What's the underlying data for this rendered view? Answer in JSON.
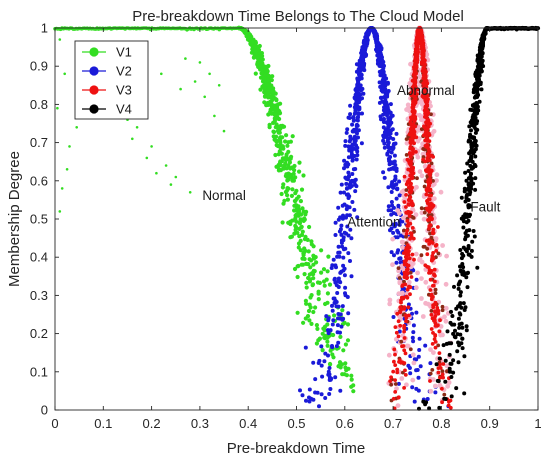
{
  "chart_data": {
    "type": "scatter",
    "title": "Pre-breakdown Time Belongs to The Cloud Model",
    "xlabel": "Pre-breakdown Time",
    "ylabel": "Membership Degree",
    "xlim": [
      0,
      1
    ],
    "ylim": [
      0,
      1
    ],
    "xticks": [
      "0",
      "0.1",
      "0.2",
      "0.3",
      "0.4",
      "0.5",
      "0.6",
      "0.7",
      "0.8",
      "0.9",
      "1"
    ],
    "yticks": [
      "0",
      "0.1",
      "0.2",
      "0.3",
      "0.4",
      "0.5",
      "0.6",
      "0.7",
      "0.8",
      "0.9",
      "1"
    ],
    "grid": false,
    "legend_position": "top-left",
    "series": [
      {
        "name": "V1",
        "color": "#33dd22",
        "shape": "half-cloud-left",
        "plateau_to": 0.38,
        "Ex": 0.38,
        "En": 0.105,
        "He": 0.012,
        "extent": [
          0,
          0.62
        ]
      },
      {
        "name": "V2",
        "color": "#1a1ad8",
        "shape": "cloud",
        "Ex": 0.655,
        "En": 0.045,
        "He": 0.008,
        "extent": [
          0.48,
          0.83
        ]
      },
      {
        "name": "V3",
        "color": "#ee1111",
        "shape": "cloud",
        "Ex": 0.755,
        "En": 0.019,
        "He": 0.004,
        "extent": [
          0.69,
          0.83
        ]
      },
      {
        "name": "V4",
        "color": "#000000",
        "shape": "half-cloud-right",
        "plateau_from": 0.895,
        "Ex": 0.895,
        "En": 0.036,
        "He": 0.006,
        "extent": [
          0.73,
          1
        ]
      }
    ],
    "annotations": [
      {
        "text": "Normal",
        "x": 0.305,
        "y": 0.55
      },
      {
        "text": "Attention",
        "x": 0.605,
        "y": 0.48
      },
      {
        "text": "Abnormal",
        "x": 0.708,
        "y": 0.825
      },
      {
        "text": "Fault",
        "x": 0.86,
        "y": 0.52
      }
    ]
  }
}
